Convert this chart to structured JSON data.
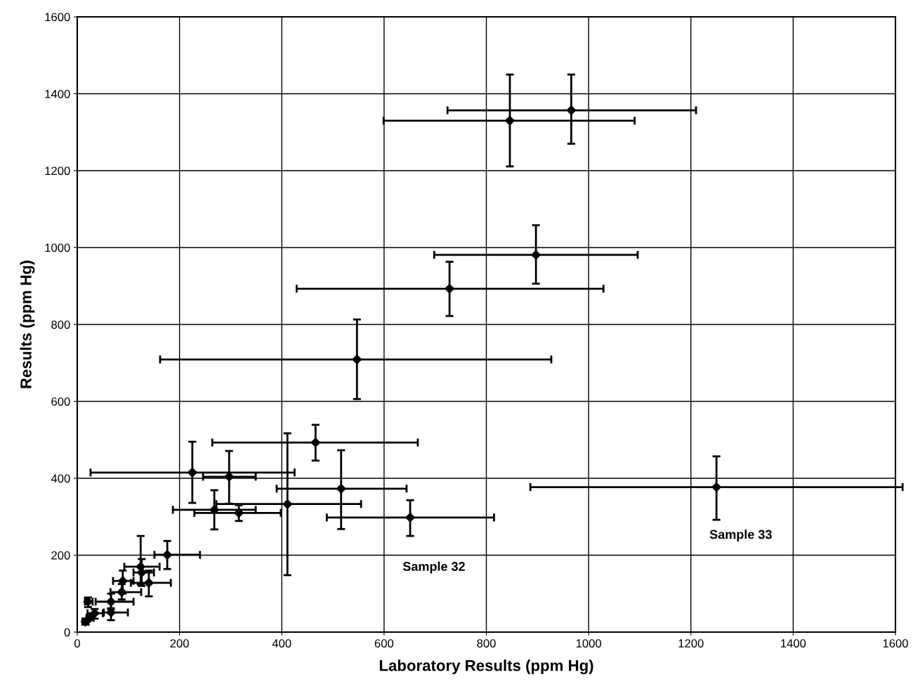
{
  "chart_data": {
    "type": "scatter",
    "xlabel": "Laboratory Results (ppm Hg)",
    "ylabel": "Results (ppm Hg)",
    "xlim": [
      0,
      1600
    ],
    "ylim": [
      0,
      1600
    ],
    "xticks": [
      0,
      200,
      400,
      600,
      800,
      1000,
      1200,
      1400,
      1600
    ],
    "yticks": [
      0,
      200,
      400,
      600,
      800,
      1000,
      1200,
      1400,
      1600
    ],
    "grid": true,
    "marker": "diamond",
    "series": [
      {
        "color": "#000000",
        "x": [
          846,
          966,
          897,
          728,
          547,
          225,
          297,
          466,
          411,
          268,
          316,
          516,
          651,
          1250,
          176,
          124,
          126,
          140,
          89,
          87,
          66,
          66,
          21,
          34,
          16,
          25
        ],
        "values": [
          1330,
          1357,
          981,
          893,
          709,
          415,
          404,
          493,
          333,
          318,
          310,
          373,
          298,
          377,
          201,
          170,
          155,
          128,
          133,
          104,
          79,
          51,
          79,
          49,
          27,
          37
        ],
        "xerrors": [
          [
            599,
            1090
          ],
          [
            724,
            1210
          ],
          [
            698,
            1096
          ],
          [
            429,
            1029
          ],
          [
            162,
            927
          ],
          [
            26,
            425
          ],
          [
            246,
            349
          ],
          [
            264,
            666
          ],
          [
            272,
            555
          ],
          [
            187,
            349
          ],
          [
            229,
            398
          ],
          [
            390,
            644
          ],
          [
            488,
            815
          ],
          [
            886,
            1614
          ],
          [
            151,
            240
          ],
          [
            92,
            161
          ],
          [
            110,
            150
          ],
          [
            105,
            183
          ],
          [
            70,
            110
          ],
          [
            65,
            125
          ],
          [
            36,
            110
          ],
          [
            52,
            99
          ],
          [
            15,
            30
          ],
          [
            20,
            50
          ],
          [
            10,
            22
          ],
          [
            18,
            32
          ]
        ],
        "errors": [
          [
            1211,
            1450
          ],
          [
            1270,
            1450
          ],
          [
            906,
            1058
          ],
          [
            822,
            963
          ],
          [
            606,
            813
          ],
          [
            336,
            495
          ],
          [
            334,
            471
          ],
          [
            446,
            539
          ],
          [
            148,
            517
          ],
          [
            267,
            369
          ],
          [
            289,
            330
          ],
          [
            268,
            473
          ],
          [
            250,
            343
          ],
          [
            292,
            457
          ],
          [
            164,
            237
          ],
          [
            124,
            250
          ],
          [
            120,
            190
          ],
          [
            93,
            160
          ],
          [
            100,
            160
          ],
          [
            85,
            125
          ],
          [
            60,
            100
          ],
          [
            31,
            62
          ],
          [
            65,
            90
          ],
          [
            35,
            60
          ],
          [
            20,
            35
          ],
          null
        ]
      }
    ],
    "annotations": [
      "Sample 32",
      "Sample 33"
    ]
  }
}
